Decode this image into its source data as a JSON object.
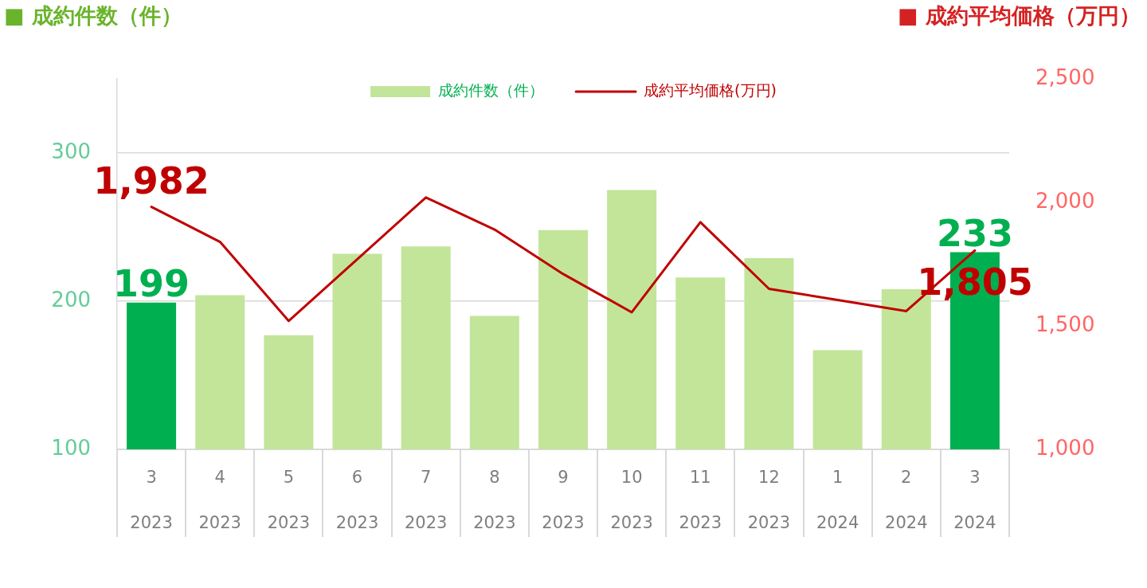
{
  "chart_data": {
    "type": "bar",
    "ylabel": "■ 成約件数（件）",
    "y2label": "■ 成約平均価格（万円）",
    "categories": [
      "3\n2023",
      "4\n2023",
      "5\n2023",
      "6\n2023",
      "7\n2023",
      "8\n2023",
      "9\n2023",
      "10\n2023",
      "11\n2023",
      "12\n2023",
      "1\n2024",
      "2\n2024",
      "3\n2024"
    ],
    "series": [
      {
        "name": "成約件数（件）",
        "color": "#c2e59a",
        "colors": [
          "#00b050",
          "#c2e59a",
          "#c2e59a",
          "#c2e59a",
          "#c2e59a",
          "#c2e59a",
          "#c2e59a",
          "#c2e59a",
          "#c2e59a",
          "#c2e59a",
          "#c2e59a",
          "#c2e59a",
          "#00b050"
        ],
        "values": [
          199,
          204,
          177,
          232,
          237,
          190,
          248,
          275,
          216,
          229,
          167,
          208,
          233
        ],
        "value_labels": [
          "199",
          null,
          null,
          null,
          null,
          null,
          null,
          null,
          null,
          null,
          null,
          null,
          "233"
        ]
      },
      {
        "name": "成約平均価格(万円)",
        "type": "line",
        "axis": "y2",
        "color": "#c00000",
        "values": [
          1982,
          1840,
          1520,
          1770,
          2020,
          1890,
          1710,
          1555,
          1920,
          1650,
          1605,
          1560,
          1805
        ],
        "value_labels": [
          "1,982",
          null,
          null,
          null,
          null,
          null,
          null,
          null,
          null,
          null,
          null,
          null,
          "1,805"
        ]
      }
    ],
    "ylim": [
      100,
      350
    ],
    "yticks": [
      100,
      200,
      300
    ],
    "y2lim": [
      1000,
      2500
    ],
    "y2ticks": [
      {
        "value": 1000,
        "label": "1,000"
      },
      {
        "value": 1500,
        "label": "1,500"
      },
      {
        "value": 2000,
        "label": "2,000"
      },
      {
        "value": 2500,
        "label": "2,500"
      }
    ],
    "grid": "y",
    "legend": "top",
    "marker": "none",
    "line_style": "solid"
  }
}
